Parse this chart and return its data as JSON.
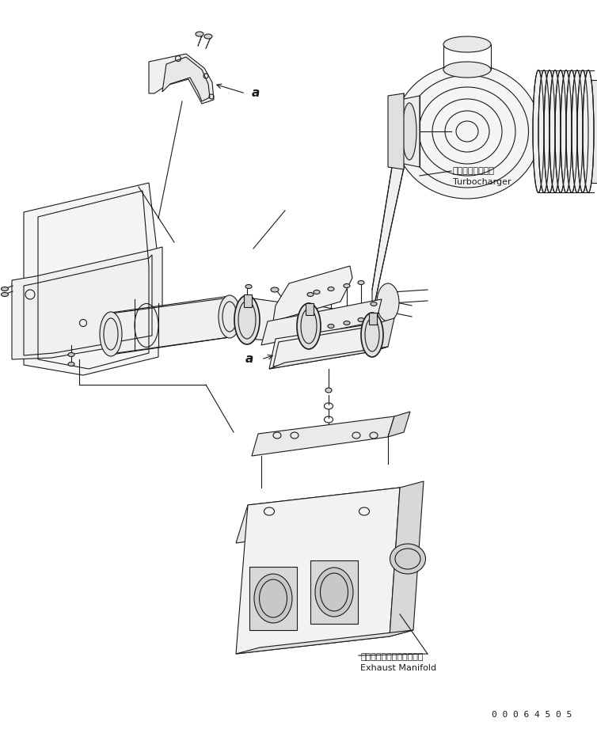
{
  "bg_color": "#ffffff",
  "line_color": "#1a1a1a",
  "label_turbocharger_jp": "ターボチャージャ",
  "label_turbocharger_en": "Turbocharger",
  "label_exhaust_jp": "エキゾーストマニホールド",
  "label_exhaust_en": "Exhaust Manifold",
  "label_a1": "a",
  "label_a2": "a",
  "serial_number": "0 0 0 6 4 5 0 5",
  "fig_width": 7.54,
  "fig_height": 9.26,
  "lw": 0.8
}
